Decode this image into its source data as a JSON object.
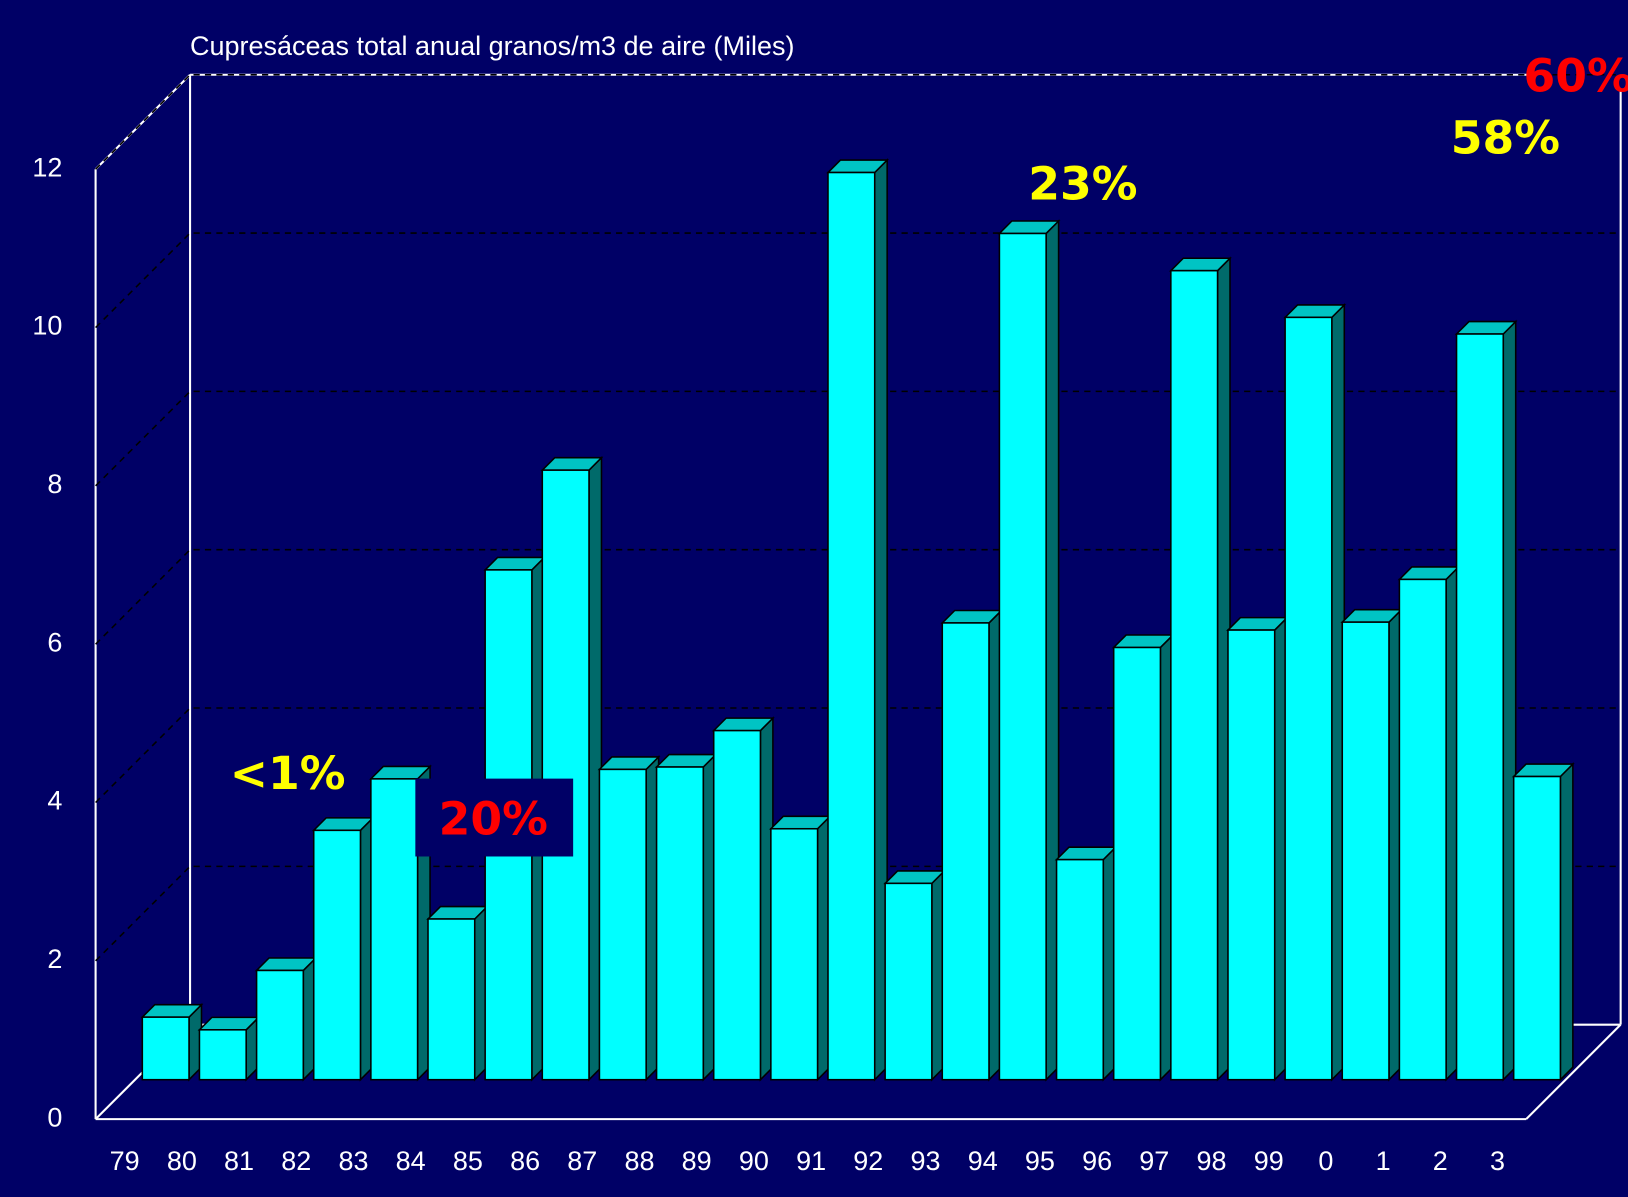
{
  "chart_data": {
    "type": "bar3d",
    "title": "Cupresáceas total anual granos/m3 de aire  (Miles)",
    "categories": [
      "79",
      "80",
      "81",
      "82",
      "83",
      "84",
      "85",
      "86",
      "87",
      "88",
      "89",
      "90",
      "91",
      "92",
      "93",
      "94",
      "95",
      "96",
      "97",
      "98",
      "99",
      "0",
      "1",
      "2",
      "3"
    ],
    "values": [
      0.79,
      0.63,
      1.38,
      3.15,
      3.8,
      2.03,
      6.44,
      7.7,
      3.92,
      3.95,
      4.41,
      3.17,
      11.46,
      2.48,
      5.77,
      10.69,
      2.78,
      5.46,
      10.22,
      5.68,
      9.63,
      5.78,
      6.32,
      9.42,
      3.83
    ],
    "color": "#00ffff",
    "ylim": [
      0,
      12
    ],
    "yticks": [
      0,
      2,
      4,
      6,
      8,
      10,
      12
    ],
    "grid": true,
    "annotations": [
      {
        "text": "<1%",
        "color": "#ffff00"
      },
      {
        "text": "20%",
        "color": "#ff0000"
      },
      {
        "text": "23%",
        "color": "#ffff00"
      },
      {
        "text": "58%",
        "color": "#ffff00"
      },
      {
        "text": "60%",
        "color": "#ff0000"
      }
    ]
  }
}
